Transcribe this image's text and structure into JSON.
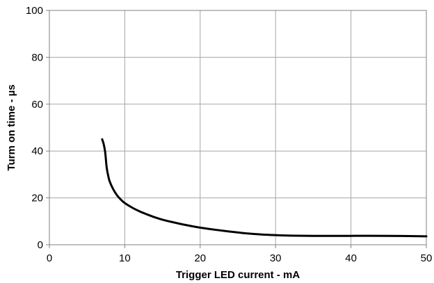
{
  "chart_data": {
    "type": "line",
    "title": "",
    "xlabel": "Trigger LED current - mA",
    "ylabel": "Turm on time - µs",
    "xlim": [
      0,
      50
    ],
    "ylim": [
      0,
      100
    ],
    "xticks": [
      0,
      10,
      20,
      30,
      40,
      50
    ],
    "yticks": [
      0,
      20,
      40,
      60,
      80,
      100
    ],
    "grid": true,
    "legend": "none",
    "line_color": "#000000",
    "grid_color": "#a6a6a6",
    "series": [
      {
        "x": [
          7,
          7.2,
          7.4,
          7.6,
          7.8,
          8,
          8.5,
          9,
          9.5,
          10,
          11,
          12,
          13,
          14,
          15,
          16,
          18,
          20,
          22,
          24,
          26,
          28,
          30,
          32,
          35,
          40,
          45,
          50
        ],
        "y": [
          45,
          43,
          39.5,
          33,
          29.5,
          27,
          23.5,
          21,
          19.2,
          17.8,
          15.8,
          14.2,
          12.9,
          11.7,
          10.7,
          9.9,
          8.5,
          7.3,
          6.4,
          5.6,
          4.9,
          4.4,
          4.1,
          3.9,
          3.8,
          3.8,
          3.8,
          3.6
        ]
      }
    ]
  }
}
